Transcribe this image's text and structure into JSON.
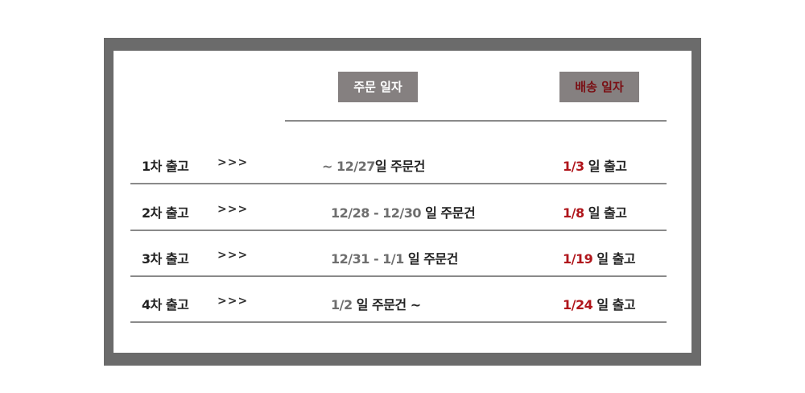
{
  "header": {
    "order_date_label": "주문 일자",
    "ship_date_label": "배송 일자"
  },
  "arrows": ">>>",
  "rows": [
    {
      "label": "1차 출고",
      "order_range": "~ 12/27",
      "order_suffix": "일 주문건",
      "ship_date": "1/3",
      "ship_suffix": "일 출고"
    },
    {
      "label": "2차 출고",
      "order_range": "12/28 - 12/30",
      "order_suffix": "일 주문건",
      "ship_date": "1/8",
      "ship_suffix": "일 출고"
    },
    {
      "label": "3차 출고",
      "order_range": "12/31 - 1/1",
      "order_suffix": "일 주문건",
      "ship_date": "1/19",
      "ship_suffix": "일 출고"
    },
    {
      "label": "4차 출고",
      "order_range": "1/2",
      "order_suffix": "일 주문건 ~",
      "ship_date": "1/24",
      "ship_suffix": "일 출고"
    }
  ],
  "colors": {
    "frame": "#6b6b6b",
    "badge_bg": "#858080",
    "ship_header_text": "#7a0f14",
    "ship_date_text": "#b0161c"
  }
}
